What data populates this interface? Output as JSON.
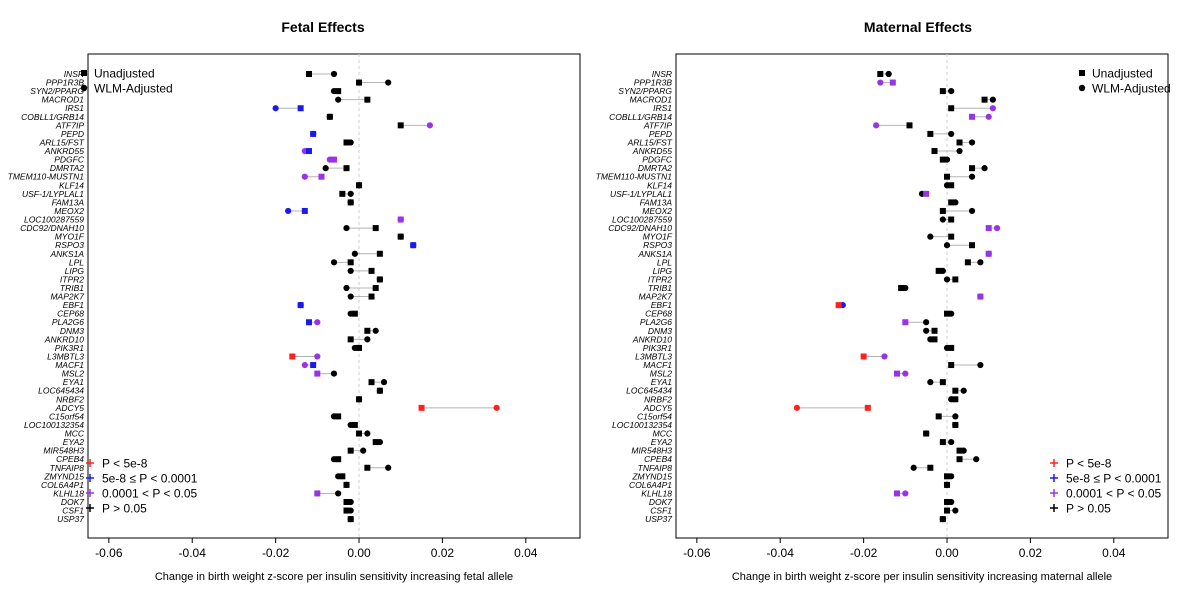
{
  "colors": {
    "p_genome": "#ff2020",
    "p_strong": "#1a1aee",
    "p_nominal": "#9a32e6",
    "p_ns": "#000000",
    "connector": "#b4b4b4",
    "zero_line": "#cfcfcf"
  },
  "legend": {
    "markers": [
      {
        "symbol": "square",
        "label": "Unadjusted"
      },
      {
        "symbol": "circle",
        "label": "WLM-Adjusted"
      }
    ],
    "pvalues": [
      {
        "key": "p_genome",
        "label": "P < 5e-8"
      },
      {
        "key": "p_strong",
        "label": "5e-8 ≤ P < 0.0001"
      },
      {
        "key": "p_nominal",
        "label": "0.0001 < P < 0.05"
      },
      {
        "key": "p_ns",
        "label": "P > 0.05"
      }
    ]
  },
  "chart_data": [
    {
      "type": "scatter",
      "title": "Fetal Effects",
      "xlabel": "Change in birth weight z-score per insulin sensitivity increasing fetal allele",
      "xlim": [
        -0.065,
        0.053
      ],
      "xticks": [
        "-0.06",
        "-0.04",
        "-0.02",
        "0.00",
        "0.02",
        "0.04"
      ],
      "xtick_values": [
        -0.06,
        -0.04,
        -0.02,
        0.0,
        0.02,
        0.04
      ],
      "legend_position": "bottom-left",
      "legend_top_position": "top-left",
      "genes": [
        "INSR",
        "PPP1R3B",
        "SYN2/PPARG",
        "MACROD1",
        "IRS1",
        "COBLL1/GRB14",
        "ATF7IP",
        "PEPD",
        "ARL15/FST",
        "ANKRD55",
        "PDGFC",
        "DMRTA2",
        "TMEM110-MUSTN1",
        "KLF14",
        "USF-1/LYPLAL1",
        "FAM13A",
        "MEOX2",
        "LOC100287559",
        "CDC92/DNAH10",
        "MYO1F",
        "RSPO3",
        "ANKS1A",
        "LPL",
        "LIPG",
        "ITPR2",
        "TRIB1",
        "MAP2K7",
        "EBF1",
        "CEP68",
        "PLA2G6",
        "DNM3",
        "ANKRD10",
        "PIK3R1",
        "L3MBTL3",
        "MACF1",
        "MSL2",
        "EYA1",
        "LOC645434",
        "NRBF2",
        "ADCY5",
        "C15orf54",
        "LOC100132354",
        "MCC",
        "EYA2",
        "MIR548H3",
        "CPEB4",
        "TNFAIP8",
        "ZMYND15",
        "COL6A4P1",
        "KLHL18",
        "DOK7",
        "CSF1",
        "USP37"
      ],
      "unadjusted": [
        -0.012,
        0.0,
        -0.005,
        0.002,
        -0.014,
        -0.007,
        0.01,
        -0.011,
        -0.003,
        -0.012,
        -0.006,
        -0.003,
        -0.009,
        0.0,
        -0.004,
        -0.002,
        -0.013,
        0.01,
        0.004,
        0.01,
        0.013,
        0.005,
        -0.002,
        0.003,
        0.005,
        0.004,
        0.003,
        -0.014,
        -0.001,
        -0.012,
        0.002,
        -0.002,
        0.0,
        -0.016,
        -0.011,
        -0.01,
        0.003,
        0.005,
        0.0,
        0.015,
        -0.005,
        -0.001,
        0.0,
        0.004,
        -0.002,
        -0.005,
        0.002,
        -0.004,
        -0.003,
        -0.01,
        -0.003,
        -0.003,
        -0.002
      ],
      "adjusted": [
        -0.006,
        0.007,
        -0.006,
        -0.005,
        -0.02,
        -0.007,
        0.017,
        -0.011,
        -0.002,
        -0.013,
        -0.007,
        -0.008,
        -0.013,
        0.0,
        -0.002,
        -0.002,
        -0.017,
        0.01,
        -0.003,
        0.01,
        0.013,
        -0.001,
        -0.006,
        -0.002,
        0.005,
        -0.003,
        -0.002,
        -0.014,
        -0.002,
        -0.01,
        0.004,
        0.002,
        -0.001,
        -0.01,
        -0.013,
        -0.006,
        0.006,
        0.005,
        0.0,
        0.033,
        -0.006,
        -0.002,
        0.002,
        0.005,
        0.001,
        -0.006,
        0.007,
        -0.005,
        -0.003,
        -0.005,
        -0.002,
        -0.002,
        -0.002
      ],
      "unadjusted_p": [
        "p_ns",
        "p_ns",
        "p_ns",
        "p_ns",
        "p_strong",
        "p_ns",
        "p_ns",
        "p_strong",
        "p_ns",
        "p_strong",
        "p_nominal",
        "p_ns",
        "p_nominal",
        "p_ns",
        "p_ns",
        "p_ns",
        "p_strong",
        "p_nominal",
        "p_ns",
        "p_ns",
        "p_strong",
        "p_ns",
        "p_ns",
        "p_ns",
        "p_ns",
        "p_ns",
        "p_ns",
        "p_strong",
        "p_ns",
        "p_strong",
        "p_ns",
        "p_ns",
        "p_ns",
        "p_genome",
        "p_strong",
        "p_nominal",
        "p_ns",
        "p_ns",
        "p_ns",
        "p_genome",
        "p_ns",
        "p_ns",
        "p_ns",
        "p_ns",
        "p_ns",
        "p_ns",
        "p_ns",
        "p_ns",
        "p_ns",
        "p_nominal",
        "p_ns",
        "p_ns",
        "p_ns"
      ],
      "adjusted_p": [
        "p_ns",
        "p_ns",
        "p_ns",
        "p_ns",
        "p_strong",
        "p_ns",
        "p_nominal",
        "p_strong",
        "p_ns",
        "p_nominal",
        "p_nominal",
        "p_ns",
        "p_nominal",
        "p_ns",
        "p_ns",
        "p_ns",
        "p_strong",
        "p_nominal",
        "p_ns",
        "p_ns",
        "p_strong",
        "p_ns",
        "p_ns",
        "p_ns",
        "p_ns",
        "p_ns",
        "p_ns",
        "p_strong",
        "p_ns",
        "p_nominal",
        "p_ns",
        "p_ns",
        "p_ns",
        "p_nominal",
        "p_nominal",
        "p_ns",
        "p_ns",
        "p_ns",
        "p_ns",
        "p_genome",
        "p_ns",
        "p_ns",
        "p_ns",
        "p_ns",
        "p_ns",
        "p_ns",
        "p_ns",
        "p_ns",
        "p_ns",
        "p_ns",
        "p_ns",
        "p_ns",
        "p_ns"
      ]
    },
    {
      "type": "scatter",
      "title": "Maternal Effects",
      "xlabel": "Change in birth weight z-score per insulin sensitivity increasing maternal allele",
      "xlim": [
        -0.065,
        0.053
      ],
      "xticks": [
        "-0.06",
        "-0.04",
        "-0.02",
        "0.00",
        "0.02",
        "0.04"
      ],
      "xtick_values": [
        -0.06,
        -0.04,
        -0.02,
        0.0,
        0.02,
        0.04
      ],
      "legend_position": "bottom-right",
      "legend_top_position": "top-right",
      "genes": [
        "INSR",
        "PPP1R3B",
        "SYN2/PPARG",
        "MACROD1",
        "IRS1",
        "COBLL1/GRB14",
        "ATF7IP",
        "PEPD",
        "ARL15/FST",
        "ANKRD55",
        "PDGFC",
        "DMRTA2",
        "TMEM110-MUSTN1",
        "KLF14",
        "USF-1/LYPLAL1",
        "FAM13A",
        "MEOX2",
        "LOC100287559",
        "CDC92/DNAH10",
        "MYO1F",
        "RSPO3",
        "ANKS1A",
        "LPL",
        "LIPG",
        "ITPR2",
        "TRIB1",
        "MAP2K7",
        "EBF1",
        "CEP68",
        "PLA2G6",
        "DNM3",
        "ANKRD10",
        "PIK3R1",
        "L3MBTL3",
        "MACF1",
        "MSL2",
        "EYA1",
        "LOC645434",
        "NRBF2",
        "ADCY5",
        "C15orf54",
        "LOC100132354",
        "MCC",
        "EYA2",
        "MIR548H3",
        "CPEB4",
        "TNFAIP8",
        "ZMYND15",
        "COL6A4P1",
        "KLHL18",
        "DOK7",
        "CSF1",
        "USP37"
      ],
      "unadjusted": [
        -0.016,
        -0.013,
        -0.001,
        0.009,
        0.001,
        0.006,
        -0.009,
        -0.004,
        0.003,
        -0.003,
        -0.001,
        0.006,
        0.0,
        0.001,
        -0.005,
        0.001,
        -0.001,
        0.001,
        0.01,
        0.001,
        0.006,
        0.01,
        0.005,
        -0.002,
        0.002,
        -0.011,
        0.008,
        -0.026,
        0.0,
        -0.01,
        -0.003,
        -0.003,
        0.001,
        -0.02,
        0.001,
        -0.012,
        -0.001,
        0.002,
        0.002,
        -0.019,
        -0.002,
        0.002,
        -0.005,
        -0.001,
        0.003,
        0.003,
        -0.004,
        0.0,
        0.0,
        -0.012,
        0.0,
        0.0,
        -0.001
      ],
      "adjusted": [
        -0.014,
        -0.016,
        0.001,
        0.011,
        0.011,
        0.01,
        -0.017,
        0.001,
        0.006,
        0.003,
        0.0,
        0.009,
        0.006,
        0.0,
        -0.006,
        0.002,
        0.006,
        -0.001,
        0.012,
        -0.004,
        0.0,
        0.01,
        0.008,
        -0.001,
        0.0,
        -0.01,
        0.008,
        -0.025,
        0.001,
        -0.005,
        -0.005,
        -0.004,
        0.0,
        -0.015,
        0.008,
        -0.01,
        -0.004,
        0.004,
        0.001,
        -0.036,
        0.002,
        0.002,
        -0.005,
        0.001,
        0.004,
        0.007,
        -0.008,
        0.001,
        0.0,
        -0.01,
        0.001,
        0.002,
        -0.001
      ],
      "unadjusted_p": [
        "p_ns",
        "p_nominal",
        "p_ns",
        "p_ns",
        "p_ns",
        "p_nominal",
        "p_ns",
        "p_ns",
        "p_ns",
        "p_ns",
        "p_ns",
        "p_ns",
        "p_ns",
        "p_ns",
        "p_nominal",
        "p_ns",
        "p_ns",
        "p_ns",
        "p_nominal",
        "p_ns",
        "p_ns",
        "p_nominal",
        "p_ns",
        "p_ns",
        "p_ns",
        "p_ns",
        "p_nominal",
        "p_genome",
        "p_ns",
        "p_nominal",
        "p_ns",
        "p_ns",
        "p_ns",
        "p_genome",
        "p_ns",
        "p_nominal",
        "p_ns",
        "p_ns",
        "p_ns",
        "p_genome",
        "p_ns",
        "p_ns",
        "p_ns",
        "p_ns",
        "p_ns",
        "p_ns",
        "p_ns",
        "p_ns",
        "p_ns",
        "p_nominal",
        "p_ns",
        "p_ns",
        "p_ns"
      ],
      "adjusted_p": [
        "p_ns",
        "p_nominal",
        "p_ns",
        "p_ns",
        "p_nominal",
        "p_nominal",
        "p_nominal",
        "p_ns",
        "p_ns",
        "p_ns",
        "p_ns",
        "p_ns",
        "p_ns",
        "p_ns",
        "p_ns",
        "p_ns",
        "p_ns",
        "p_ns",
        "p_nominal",
        "p_ns",
        "p_ns",
        "p_nominal",
        "p_ns",
        "p_ns",
        "p_ns",
        "p_ns",
        "p_nominal",
        "p_strong",
        "p_ns",
        "p_ns",
        "p_ns",
        "p_ns",
        "p_ns",
        "p_nominal",
        "p_ns",
        "p_nominal",
        "p_ns",
        "p_ns",
        "p_ns",
        "p_genome",
        "p_ns",
        "p_ns",
        "p_ns",
        "p_ns",
        "p_ns",
        "p_ns",
        "p_ns",
        "p_ns",
        "p_ns",
        "p_nominal",
        "p_ns",
        "p_ns",
        "p_ns"
      ]
    }
  ]
}
